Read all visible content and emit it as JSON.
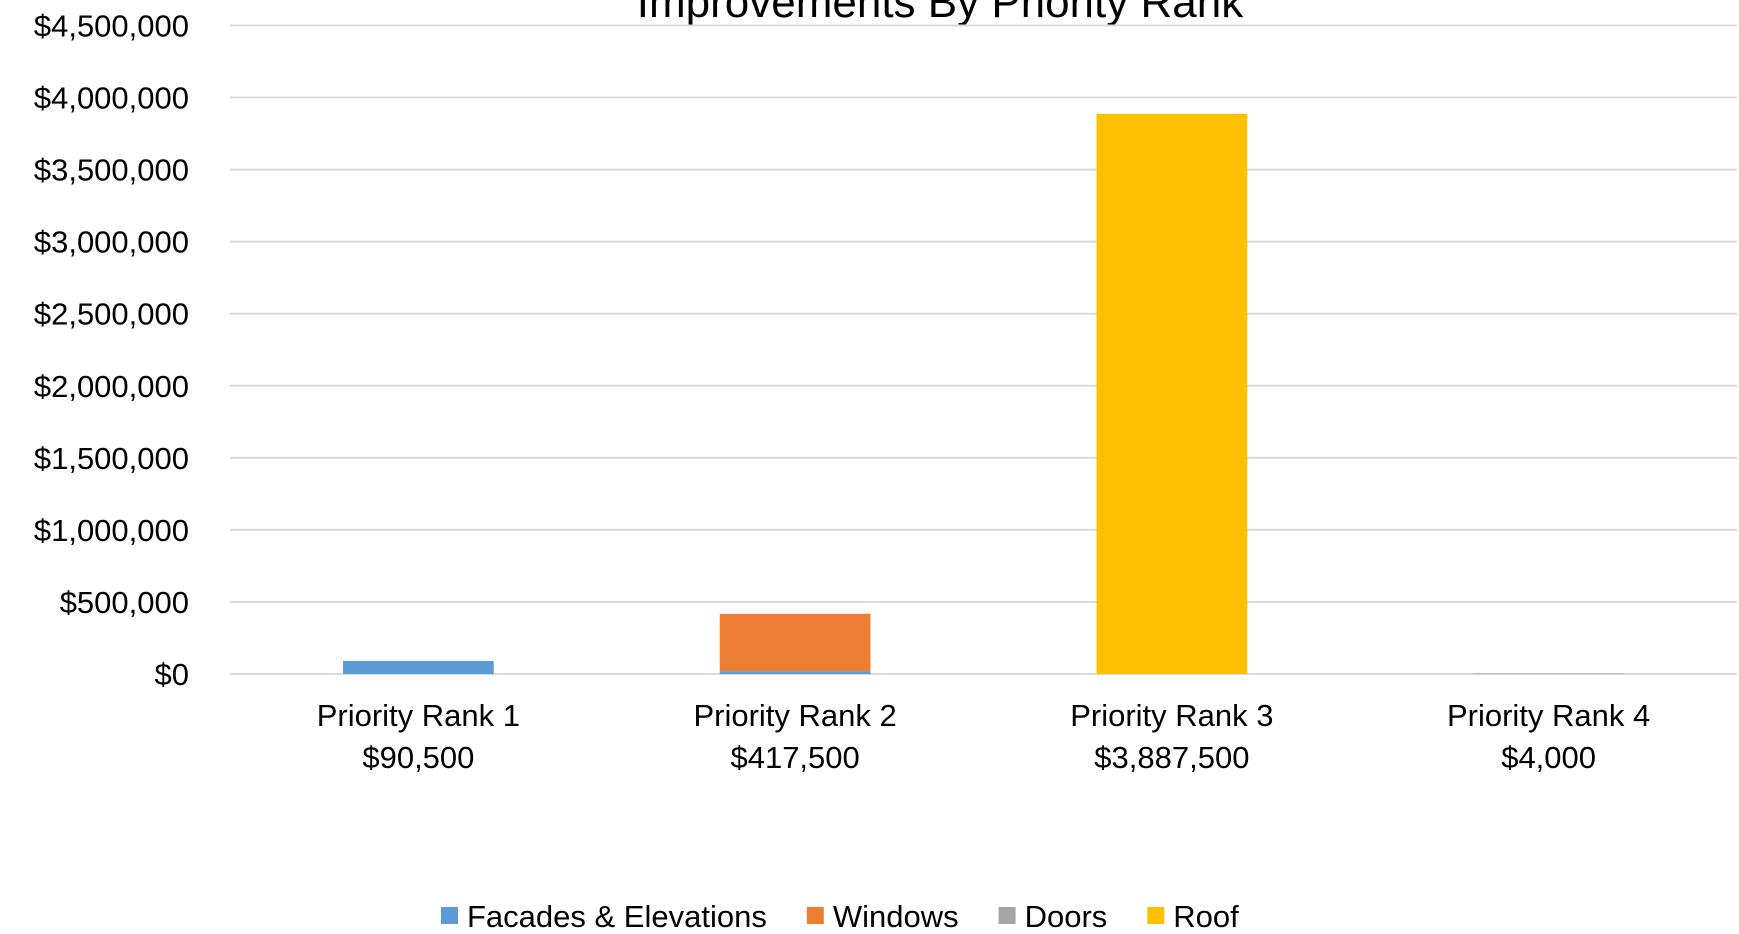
{
  "chart_data": {
    "type": "stacked_bar",
    "title": "Improvements By Priority Rank",
    "categories": [
      "Priority Rank 1",
      "Priority Rank 2",
      "Priority Rank 3",
      "Priority Rank 4"
    ],
    "category_sublabels": [
      "$90,500",
      "$417,500",
      "$3,887,500",
      "$4,000"
    ],
    "series": [
      {
        "name": "Facades & Elevations",
        "color": "#5b9bd5",
        "values": [
          90500,
          20000,
          0,
          0
        ]
      },
      {
        "name": "Windows",
        "color": "#ed7d31",
        "values": [
          0,
          397500,
          0,
          0
        ]
      },
      {
        "name": "Doors",
        "color": "#a5a5a5",
        "values": [
          0,
          0,
          0,
          4000
        ]
      },
      {
        "name": "Roof",
        "color": "#ffc000",
        "values": [
          0,
          0,
          3887500,
          0
        ]
      }
    ],
    "ylim": [
      0,
      4500000
    ],
    "yticks": [
      {
        "value": 0,
        "label": "$0"
      },
      {
        "value": 500000,
        "label": "$500,000"
      },
      {
        "value": 1000000,
        "label": "$1,000,000"
      },
      {
        "value": 1500000,
        "label": "$1,500,000"
      },
      {
        "value": 2000000,
        "label": "$2,000,000"
      },
      {
        "value": 2500000,
        "label": "$2,500,000"
      },
      {
        "value": 3000000,
        "label": "$3,000,000"
      },
      {
        "value": 3500000,
        "label": "$3,500,000"
      },
      {
        "value": 4000000,
        "label": "$4,000,000"
      },
      {
        "value": 4500000,
        "label": "$4,500,000"
      }
    ],
    "grid": true,
    "legend": "bottom"
  }
}
